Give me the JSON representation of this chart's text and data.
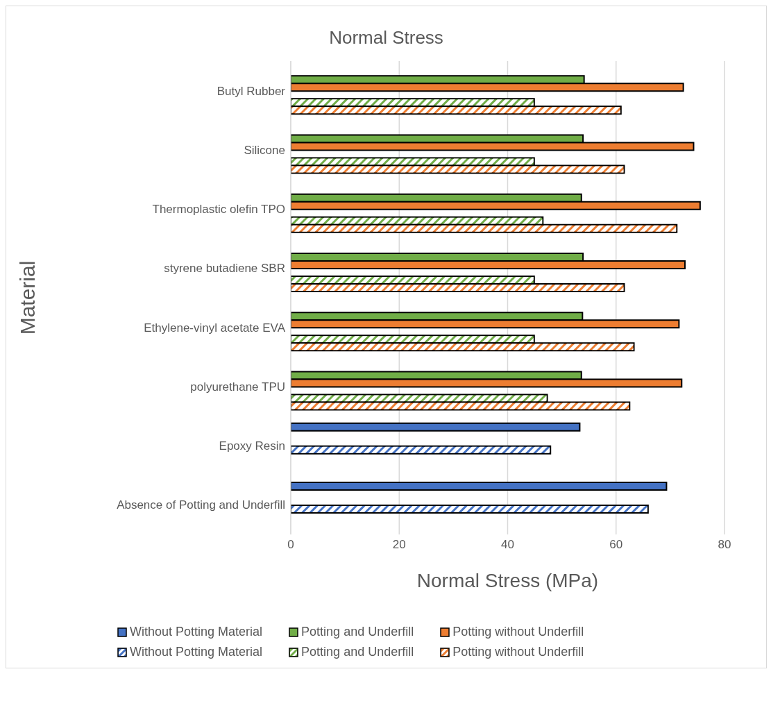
{
  "chart_data": {
    "type": "bar",
    "orientation": "horizontal",
    "title": "Normal Stress",
    "xlabel": "Normal Stress (MPa)",
    "ylabel": "Material",
    "categories": [
      "Butyl Rubber",
      "Silicone",
      "Thermoplastic olefin TPO",
      "styrene butadiene SBR",
      "Ethylene-vinyl acetate EVA",
      "polyurethane TPU",
      "Epoxy Resin",
      "Absence of Potting and Underfill"
    ],
    "series": [
      {
        "name": "Without Potting Material",
        "color": "#4472c4",
        "values": [
          null,
          null,
          null,
          null,
          null,
          null,
          53.3,
          69.3
        ]
      },
      {
        "name": "Potting and Underfill",
        "color": "#70ad47",
        "values": [
          54.1,
          53.9,
          53.6,
          53.9,
          53.8,
          53.6,
          null,
          null
        ]
      },
      {
        "name": "Potting without Underfill",
        "color": "#ed7d31",
        "values": [
          72.4,
          74.3,
          75.5,
          72.7,
          71.6,
          72.1,
          null,
          null
        ]
      },
      {
        "name": "Without Potting Material",
        "color": "#4472c4",
        "values": [
          null,
          null,
          null,
          null,
          null,
          null,
          47.9,
          65.9
        ]
      },
      {
        "name": "Potting and Underfill",
        "color": "#70ad47",
        "values": [
          44.9,
          44.9,
          46.5,
          44.9,
          44.9,
          47.3,
          null,
          null
        ]
      },
      {
        "name": "Potting without Underfill",
        "color": "#ed7d31",
        "values": [
          60.9,
          61.5,
          71.2,
          61.5,
          63.3,
          62.5,
          null,
          null
        ]
      }
    ],
    "xlim": [
      0,
      80
    ],
    "xticks": [
      0,
      20,
      40,
      60,
      80
    ],
    "grid": "x",
    "legend": "bottom"
  }
}
